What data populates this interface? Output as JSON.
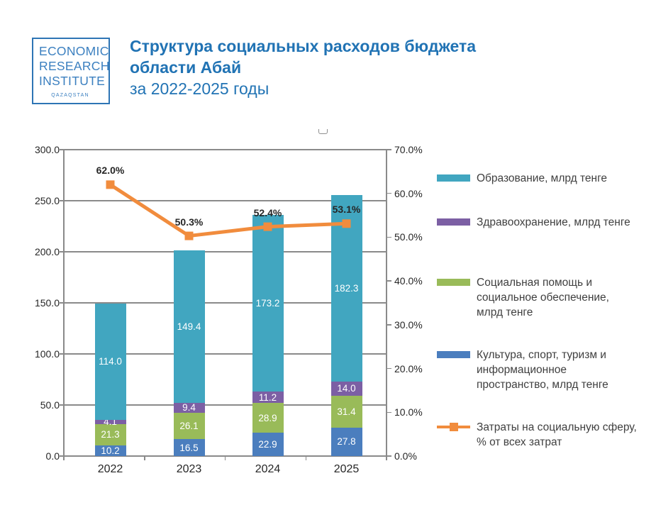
{
  "logo": {
    "line1": "ECONOMIC",
    "line2": "RESEARCH",
    "line3": "INSTITUTE",
    "sub": "QAZAQSTAN",
    "border_color": "#2e75b5",
    "text_color": "#3c80c0"
  },
  "header": {
    "line1": "Структура социальных расходов бюджета",
    "line2": "области Абай",
    "line3": "за 2022-2025 годы",
    "color": "#2173b4"
  },
  "chart_data": {
    "type": "bar",
    "subtype": "stacked-bars-with-percent-line",
    "categories": [
      "2022",
      "2023",
      "2024",
      "2025"
    ],
    "series": [
      {
        "name": "Культура, спорт, туризм и информационное пространство, млрд тенге",
        "color": "#4b7ebe",
        "values": [
          10.2,
          16.5,
          22.9,
          27.8
        ]
      },
      {
        "name": "Социальная помощь и социальное обеспечение, млрд тенге",
        "color": "#99bb59",
        "values": [
          21.3,
          26.1,
          28.9,
          31.4
        ]
      },
      {
        "name": "Здравоохранение, млрд тенге",
        "color": "#7c5fa4",
        "values": [
          4.1,
          9.4,
          11.2,
          14.0
        ]
      },
      {
        "name": "Образование, млрд тенге",
        "color": "#41a6c0",
        "values": [
          114.0,
          149.4,
          173.2,
          182.3
        ]
      }
    ],
    "line_series": {
      "name": "Затраты на социальную сферу, % от всех затрат",
      "color": "#f18c3d",
      "values": [
        62.0,
        50.3,
        52.4,
        53.1
      ],
      "point_labels": [
        "62.0%",
        "50.3%",
        "52.4%",
        "53.1%"
      ]
    },
    "left_axis": {
      "min": 0,
      "max": 300,
      "step": 50,
      "labels": [
        "0.0",
        "50.0",
        "100.0",
        "150.0",
        "200.0",
        "250.0",
        "300.0"
      ]
    },
    "right_axis": {
      "min": 0,
      "max": 70,
      "step": 10,
      "labels": [
        "0.0%",
        "10.0%",
        "20.0%",
        "30.0%",
        "40.0%",
        "50.0%",
        "60.0%",
        "70.0%"
      ]
    },
    "grid": true,
    "legend_position": "right"
  },
  "legend": {
    "items": [
      {
        "type": "box",
        "color": "#41a6c0",
        "label": "Образование, млрд тенге"
      },
      {
        "type": "box",
        "color": "#7c5fa4",
        "label": "Здравоохранение, млрд тенге"
      },
      {
        "type": "box",
        "color": "#99bb59",
        "label": "Социальная помощь и социальное обеспечение, млрд тенге"
      },
      {
        "type": "box",
        "color": "#4b7ebe",
        "label": "Культура, спорт, туризм и информационное пространство, млрд тенге"
      },
      {
        "type": "line",
        "color": "#f18c3d",
        "label": "Затраты на социальную сферу, % от всех затрат"
      }
    ]
  }
}
